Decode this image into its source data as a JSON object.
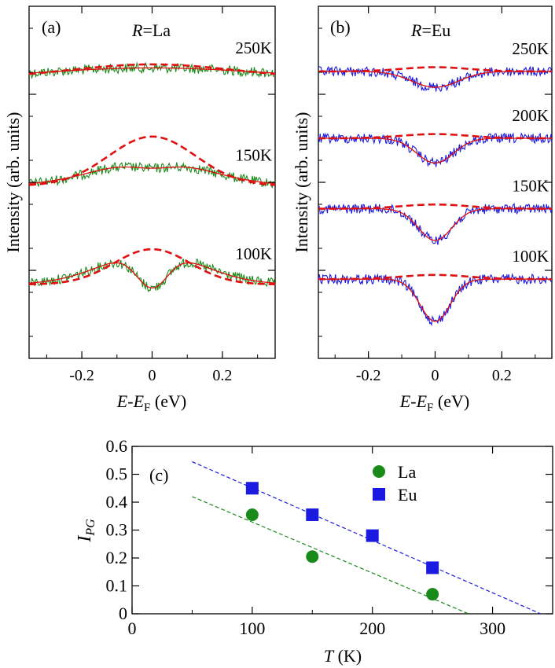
{
  "chart_data": [
    {
      "panel": "(a)",
      "type": "line",
      "legend_text": "R=La",
      "xlabel": "E-E_F (eV)",
      "ylabel": "Intensity (arb. units)",
      "xlim": [
        -0.35,
        0.35
      ],
      "xticks": [
        "-0.2",
        "0",
        "0.2"
      ],
      "x_tick_values": [
        -0.2,
        0,
        0.2
      ],
      "noise_color": "#1a8a1a",
      "fit_color": "#e01010",
      "series": [
        {
          "name": "250K",
          "baseline": 0.205,
          "pg_depth": 0.0,
          "pg_width": 0.05,
          "fit_amplitude": 0.03,
          "fit_width": 0.3,
          "symmetrized_peak": 0.04
        },
        {
          "name": "150K",
          "baseline": 0.51,
          "pg_depth": 0.02,
          "pg_width": 0.06,
          "fit_amplitude": 0.07,
          "fit_width": 0.16,
          "symmetrized_peak": 0.14
        },
        {
          "name": "100K",
          "baseline": 0.79,
          "pg_depth": 0.1,
          "pg_width": 0.045,
          "fit_amplitude": 0.09,
          "fit_width": 0.14,
          "symmetrized_peak": 0.1
        }
      ]
    },
    {
      "panel": "(b)",
      "type": "line",
      "legend_text": "R=Eu",
      "xlabel": "E-E_F (eV)",
      "ylabel": "Intensity (arb. units)",
      "xlim": [
        -0.35,
        0.35
      ],
      "xticks": [
        "-0.2",
        "0",
        "0.2"
      ],
      "x_tick_values": [
        -0.2,
        0,
        0.2
      ],
      "noise_color": "#1a1ae0",
      "fit_color": "#e01010",
      "series": [
        {
          "name": "250K",
          "baseline": 0.185,
          "pg_depth": 0.045,
          "pg_width": 0.07,
          "fit_amplitude": 0.0
        },
        {
          "name": "200K",
          "baseline": 0.375,
          "pg_depth": 0.07,
          "pg_width": 0.055,
          "fit_amplitude": 0.0
        },
        {
          "name": "150K",
          "baseline": 0.575,
          "pg_depth": 0.09,
          "pg_width": 0.05,
          "fit_amplitude": 0.0
        },
        {
          "name": "100K",
          "baseline": 0.775,
          "pg_depth": 0.12,
          "pg_width": 0.045,
          "fit_amplitude": 0.0
        }
      ]
    },
    {
      "panel": "(c)",
      "type": "scatter",
      "xlabel": "T (K)",
      "ylabel": "I_PG",
      "xlim": [
        0,
        350
      ],
      "ylim": [
        0,
        0.6
      ],
      "xticks": [
        "0",
        "100",
        "200",
        "300"
      ],
      "x_tick_values": [
        0,
        100,
        200,
        300
      ],
      "yticks": [
        "0",
        "0.1",
        "0.2",
        "0.3",
        "0.4",
        "0.5",
        "0.6"
      ],
      "y_tick_values": [
        0,
        0.1,
        0.2,
        0.3,
        0.4,
        0.5,
        0.6
      ],
      "series": [
        {
          "name": "La",
          "marker": "circle",
          "color": "#1a8a1a",
          "x": [
            100,
            150,
            250
          ],
          "y": [
            0.355,
            0.205,
            0.07
          ],
          "fit_line": [
            [
              50,
              0.42
            ],
            [
              280,
              0.0
            ]
          ]
        },
        {
          "name": "Eu",
          "marker": "square",
          "color": "#1a1ae0",
          "x": [
            100,
            150,
            200,
            250
          ],
          "y": [
            0.45,
            0.355,
            0.28,
            0.165
          ],
          "fit_line": [
            [
              50,
              0.545
            ],
            [
              340,
              0.0
            ]
          ]
        }
      ]
    }
  ]
}
